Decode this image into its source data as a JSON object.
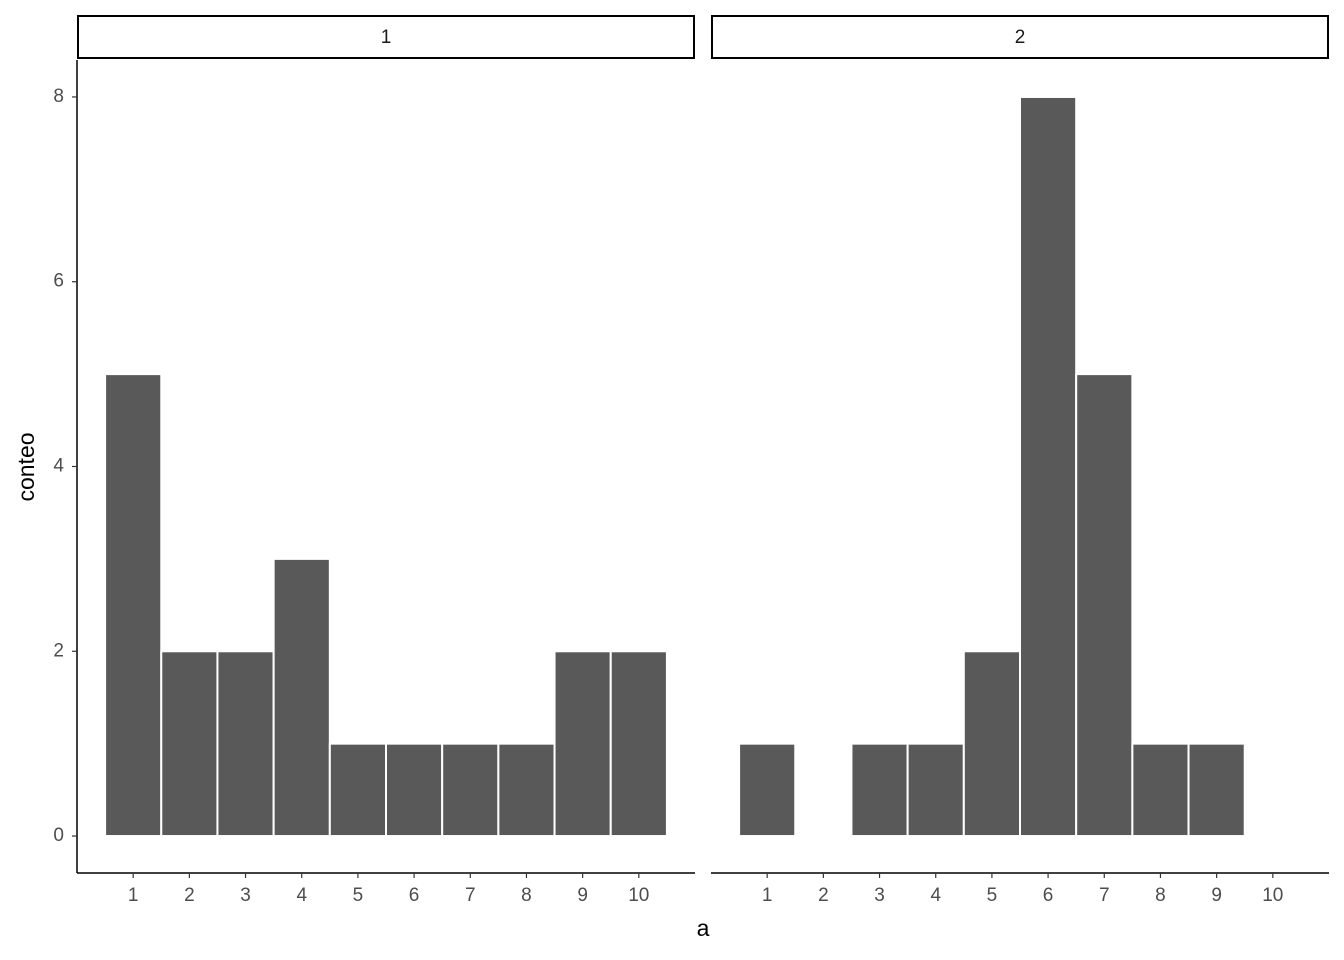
{
  "chart_data": {
    "type": "histogram",
    "xlabel": "a",
    "ylabel": "conteo",
    "bins": [
      0.5,
      1.5,
      2.5,
      3.5,
      4.5,
      5.5,
      6.5,
      7.5,
      8.5,
      9.5,
      10.5
    ],
    "facets": [
      {
        "title": "1",
        "counts": [
          5,
          2,
          2,
          3,
          1,
          1,
          1,
          1,
          2,
          2
        ]
      },
      {
        "title": "2",
        "counts": [
          1,
          0,
          1,
          1,
          2,
          8,
          5,
          1,
          1,
          0
        ]
      }
    ],
    "color": "#595959",
    "xlim": [
      0,
      11
    ],
    "xticks": [
      1,
      2,
      3,
      4,
      5,
      6,
      7,
      8,
      9,
      10
    ],
    "ylim": [
      -0.4,
      8.4
    ],
    "yticks": [
      0,
      2,
      4,
      6,
      8
    ]
  }
}
